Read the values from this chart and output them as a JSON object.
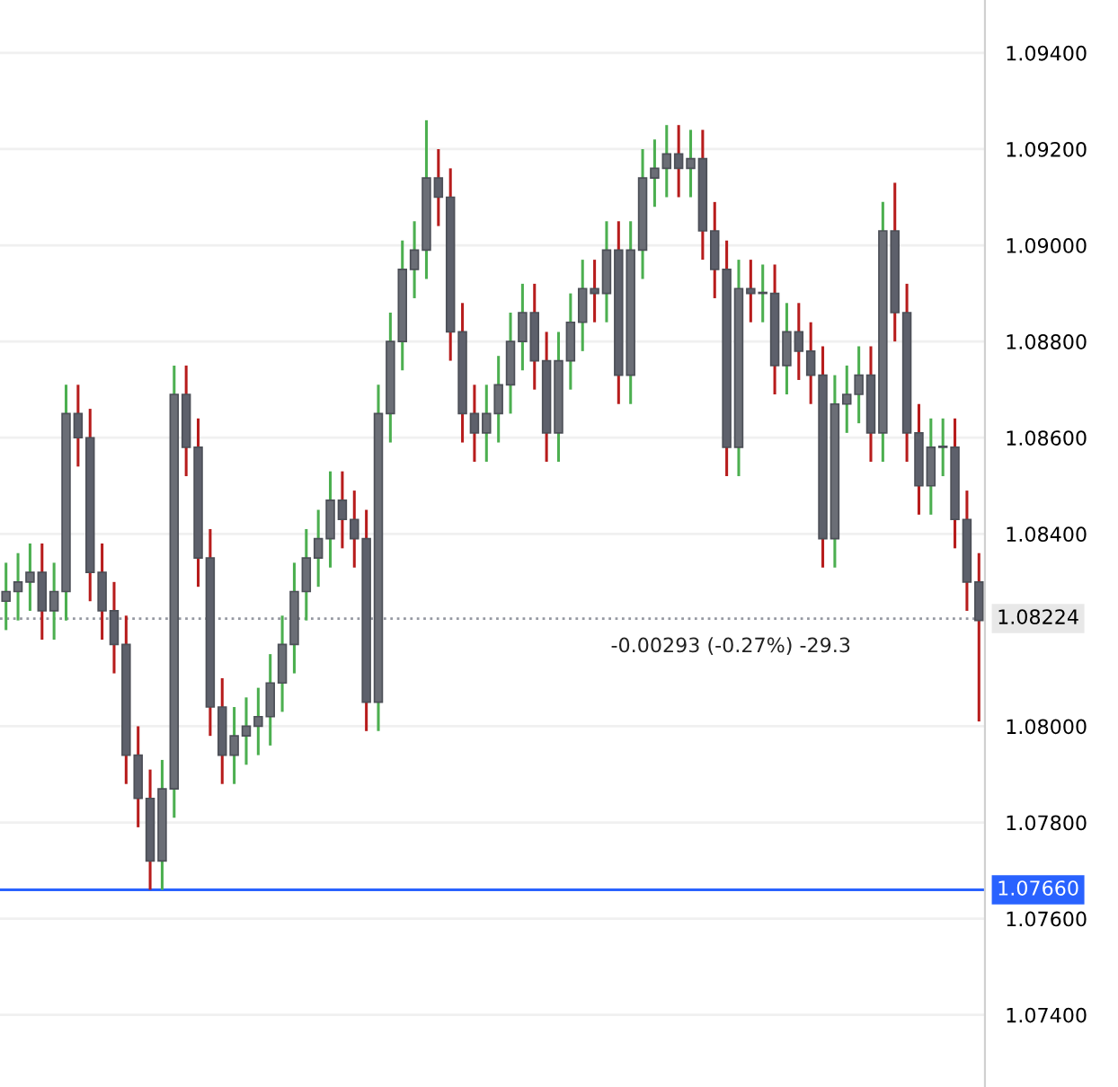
{
  "chart_data": {
    "type": "candlestick",
    "categories": [
      null,
      null,
      null,
      null,
      null,
      null,
      null,
      null,
      null,
      null,
      null,
      null,
      null,
      null,
      null,
      null,
      null,
      null,
      null,
      null,
      null,
      null,
      null,
      null,
      null,
      null,
      null,
      null,
      null,
      null,
      null,
      null,
      null,
      null,
      null,
      null,
      null,
      null,
      null,
      null,
      null,
      null,
      null,
      null,
      null,
      null,
      null,
      null,
      null,
      null,
      null,
      null,
      null,
      null,
      null,
      null,
      null,
      null,
      null,
      null,
      null,
      null,
      null,
      null,
      null,
      null,
      null,
      null,
      null,
      null,
      null,
      null,
      null,
      null,
      null,
      null,
      null,
      null,
      null,
      null,
      null,
      null
    ],
    "ohlc": [
      [
        1.0826,
        1.0834,
        1.082,
        1.0828
      ],
      [
        1.0828,
        1.0836,
        1.0822,
        1.083
      ],
      [
        1.083,
        1.0838,
        1.0824,
        1.0832
      ],
      [
        1.0832,
        1.0838,
        1.0818,
        1.0824
      ],
      [
        1.0824,
        1.0834,
        1.0818,
        1.0828
      ],
      [
        1.0828,
        1.0871,
        1.0822,
        1.0865
      ],
      [
        1.0865,
        1.0871,
        1.0854,
        1.086
      ],
      [
        1.086,
        1.0866,
        1.0826,
        1.0832
      ],
      [
        1.0832,
        1.0838,
        1.0818,
        1.0824
      ],
      [
        1.0824,
        1.083,
        1.0811,
        1.0817
      ],
      [
        1.0817,
        1.0823,
        1.0788,
        1.0794
      ],
      [
        1.0794,
        1.08,
        1.0779,
        1.0785
      ],
      [
        1.0785,
        1.0791,
        1.0766,
        1.0772
      ],
      [
        1.0772,
        1.0793,
        1.0766,
        1.0787
      ],
      [
        1.0787,
        1.0875,
        1.0781,
        1.0869
      ],
      [
        1.0869,
        1.0875,
        1.0852,
        1.0858
      ],
      [
        1.0858,
        1.0864,
        1.0829,
        1.0835
      ],
      [
        1.0835,
        1.0841,
        1.0798,
        1.0804
      ],
      [
        1.0804,
        1.081,
        1.0788,
        1.0794
      ],
      [
        1.0794,
        1.0804,
        1.0788,
        1.0798
      ],
      [
        1.0798,
        1.0806,
        1.0792,
        1.08
      ],
      [
        1.08,
        1.0808,
        1.0794,
        1.0802
      ],
      [
        1.0802,
        1.0815,
        1.0796,
        1.0809
      ],
      [
        1.0809,
        1.0823,
        1.0803,
        1.0817
      ],
      [
        1.0817,
        1.0834,
        1.0811,
        1.0828
      ],
      [
        1.0828,
        1.0841,
        1.0822,
        1.0835
      ],
      [
        1.0835,
        1.0845,
        1.0829,
        1.0839
      ],
      [
        1.0839,
        1.0853,
        1.0833,
        1.0847
      ],
      [
        1.0847,
        1.0853,
        1.0837,
        1.0843
      ],
      [
        1.0843,
        1.0849,
        1.0833,
        1.0839
      ],
      [
        1.0839,
        1.0845,
        1.0799,
        1.0805
      ],
      [
        1.0805,
        1.0871,
        1.0799,
        1.0865
      ],
      [
        1.0865,
        1.0886,
        1.0859,
        1.088
      ],
      [
        1.088,
        1.0901,
        1.0874,
        1.0895
      ],
      [
        1.0895,
        1.0905,
        1.0889,
        1.0899
      ],
      [
        1.0899,
        1.0926,
        1.0893,
        1.0914
      ],
      [
        1.0914,
        1.092,
        1.0904,
        1.091
      ],
      [
        1.091,
        1.0916,
        1.0876,
        1.0882
      ],
      [
        1.0882,
        1.0888,
        1.0859,
        1.0865
      ],
      [
        1.0865,
        1.0871,
        1.0855,
        1.0861
      ],
      [
        1.0861,
        1.0871,
        1.0855,
        1.0865
      ],
      [
        1.0865,
        1.0877,
        1.0859,
        1.0871
      ],
      [
        1.0871,
        1.0886,
        1.0865,
        1.088
      ],
      [
        1.088,
        1.0892,
        1.0874,
        1.0886
      ],
      [
        1.0886,
        1.0892,
        1.087,
        1.0876
      ],
      [
        1.0876,
        1.0882,
        1.0855,
        1.0861
      ],
      [
        1.0861,
        1.0882,
        1.0855,
        1.0876
      ],
      [
        1.0876,
        1.089,
        1.087,
        1.0884
      ],
      [
        1.0884,
        1.0897,
        1.0878,
        1.0891
      ],
      [
        1.0891,
        1.0897,
        1.0884,
        1.089
      ],
      [
        1.089,
        1.0905,
        1.0884,
        1.0899
      ],
      [
        1.0899,
        1.0905,
        1.0867,
        1.0873
      ],
      [
        1.0873,
        1.0905,
        1.0867,
        1.0899
      ],
      [
        1.0899,
        1.092,
        1.0893,
        1.0914
      ],
      [
        1.0914,
        1.0922,
        1.0908,
        1.0916
      ],
      [
        1.0916,
        1.0925,
        1.091,
        1.0919
      ],
      [
        1.0919,
        1.0925,
        1.091,
        1.0916
      ],
      [
        1.0916,
        1.0924,
        1.091,
        1.0918
      ],
      [
        1.0918,
        1.0924,
        1.0897,
        1.0903
      ],
      [
        1.0903,
        1.0909,
        1.0889,
        1.0895
      ],
      [
        1.0895,
        1.0901,
        1.0852,
        1.0858
      ],
      [
        1.0858,
        1.0897,
        1.0852,
        1.0891
      ],
      [
        1.0891,
        1.0897,
        1.0884,
        1.089
      ],
      [
        1.089,
        1.0896,
        1.0884,
        1.089
      ],
      [
        1.089,
        1.0896,
        1.0869,
        1.0875
      ],
      [
        1.0875,
        1.0888,
        1.0869,
        1.0882
      ],
      [
        1.0882,
        1.0888,
        1.0872,
        1.0878
      ],
      [
        1.0878,
        1.0884,
        1.0867,
        1.0873
      ],
      [
        1.0873,
        1.0879,
        1.0833,
        1.0839
      ],
      [
        1.0839,
        1.0873,
        1.0833,
        1.0867
      ],
      [
        1.0867,
        1.0875,
        1.0861,
        1.0869
      ],
      [
        1.0869,
        1.0879,
        1.0863,
        1.0873
      ],
      [
        1.0873,
        1.0879,
        1.0855,
        1.0861
      ],
      [
        1.0861,
        1.0909,
        1.0855,
        1.0903
      ],
      [
        1.0903,
        1.0913,
        1.088,
        1.0886
      ],
      [
        1.0886,
        1.0892,
        1.0855,
        1.0861
      ],
      [
        1.0861,
        1.0867,
        1.0844,
        1.085
      ],
      [
        1.085,
        1.0864,
        1.0844,
        1.0858
      ],
      [
        1.0858,
        1.0864,
        1.0852,
        1.0858
      ],
      [
        1.0858,
        1.0864,
        1.0837,
        1.0843
      ],
      [
        1.0843,
        1.0849,
        1.0824,
        1.083
      ],
      [
        1.083,
        1.0836,
        1.0801,
        1.0822
      ]
    ],
    "ylim": [
      1.0725,
      1.0951
    ],
    "yticks": [
      {
        "value": 1.074,
        "label": "1.07400"
      },
      {
        "value": 1.076,
        "label": "1.07600"
      },
      {
        "value": 1.078,
        "label": "1.07800"
      },
      {
        "value": 1.08,
        "label": "1.08000"
      },
      {
        "value": 1.084,
        "label": "1.08400"
      },
      {
        "value": 1.086,
        "label": "1.08600"
      },
      {
        "value": 1.088,
        "label": "1.08800"
      },
      {
        "value": 1.09,
        "label": "1.09000"
      },
      {
        "value": 1.092,
        "label": "1.09200"
      },
      {
        "value": 1.094,
        "label": "1.09400"
      }
    ],
    "ref_lines": [
      {
        "axis": "y",
        "value": 1.0766,
        "label": "1.07660",
        "color": "#2962ff",
        "line_style": "solid"
      },
      {
        "axis": "y",
        "value": 1.08224,
        "label": "1.08224",
        "color": "#9598a1",
        "line_style": "dotted"
      }
    ],
    "annotations": [
      "-0.00293 (-0.27%) -29.3"
    ],
    "grid": "y"
  }
}
